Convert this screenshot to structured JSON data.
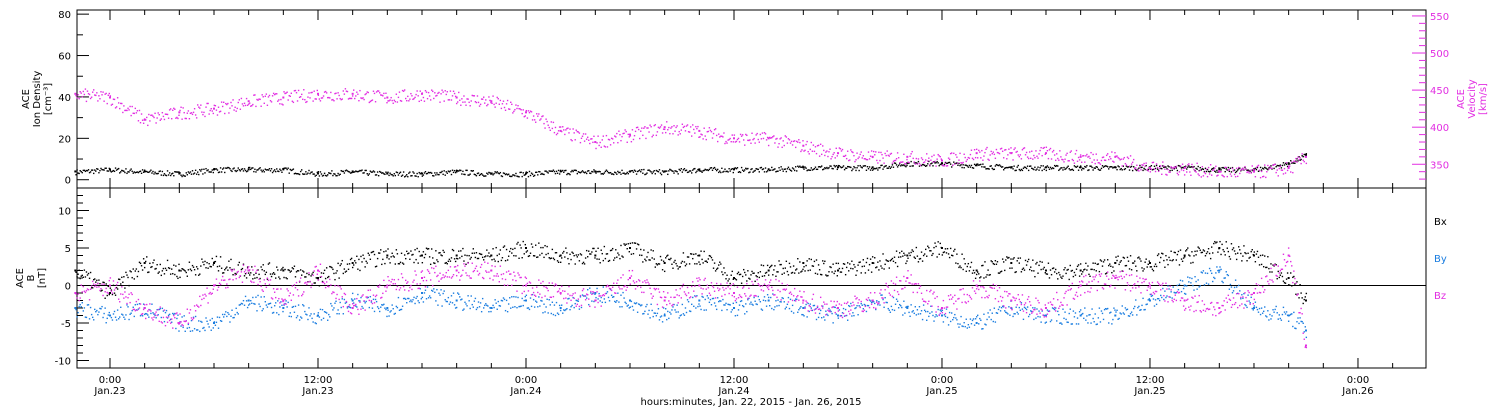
{
  "figure": {
    "x_title": "hours:minutes, Jan. 22, 2015 - Jan. 26, 2015",
    "x_ticks": [
      {
        "time": "0:00",
        "day": "Jan.23",
        "hour": 0
      },
      {
        "time": "12:00",
        "day": "Jan.23",
        "hour": 12
      },
      {
        "time": "0:00",
        "day": "Jan.24",
        "hour": 24
      },
      {
        "time": "12:00",
        "day": "Jan.24",
        "hour": 36
      },
      {
        "time": "0:00",
        "day": "Jan.25",
        "hour": 48
      },
      {
        "time": "12:00",
        "day": "Jan.25",
        "hour": 60
      },
      {
        "time": "0:00",
        "day": "Jan.26",
        "hour": 72
      }
    ]
  },
  "colors": {
    "black": "#000000",
    "magenta": "#e22ee2",
    "blue": "#1a7de0"
  },
  "chart_data": [
    {
      "type": "scatter",
      "panel": "plasma",
      "y_axis": {
        "label_lines": [
          "ACE",
          "Ion Density",
          "[cm⁻³]"
        ],
        "ylim": [
          -4,
          82
        ],
        "ticks": [
          0,
          20,
          40,
          60,
          80
        ]
      },
      "y2_axis": {
        "label_lines": [
          "ACE",
          "Velocity",
          "[km/s]"
        ],
        "ylim": [
          318,
          558
        ],
        "ticks": [
          350,
          400,
          450,
          500,
          550
        ]
      },
      "grid": false,
      "series": [
        {
          "key": "density",
          "axis": "left",
          "color": "#000000",
          "x": [
            -2,
            0,
            2,
            4,
            6,
            8,
            10,
            12,
            14,
            16,
            18,
            20,
            22,
            24,
            26,
            28,
            30,
            32,
            34,
            36,
            38,
            40,
            42,
            44,
            46,
            48,
            50,
            52,
            54,
            56,
            58,
            60,
            62,
            64,
            66,
            68,
            69
          ],
          "y": [
            4,
            5,
            4,
            3,
            5,
            5,
            5,
            3,
            4,
            3,
            3,
            4,
            3,
            3,
            4,
            4,
            4,
            4,
            5,
            5,
            5,
            6,
            6,
            6,
            8,
            8,
            7,
            6,
            6,
            6,
            6,
            6,
            6,
            5,
            5,
            8,
            12
          ]
        },
        {
          "key": "velocity",
          "axis": "right",
          "color": "#e22ee2",
          "x": [
            -2,
            0,
            2,
            4,
            6,
            8,
            10,
            12,
            14,
            16,
            18,
            20,
            22,
            24,
            26,
            28,
            30,
            32,
            34,
            36,
            38,
            40,
            42,
            44,
            46,
            48,
            50,
            52,
            54,
            56,
            58,
            60,
            62,
            64,
            66,
            68,
            69
          ],
          "y": [
            445,
            440,
            410,
            420,
            425,
            435,
            440,
            445,
            445,
            440,
            445,
            440,
            435,
            420,
            395,
            380,
            390,
            400,
            395,
            385,
            385,
            375,
            365,
            360,
            360,
            355,
            365,
            365,
            365,
            360,
            360,
            345,
            345,
            340,
            340,
            345,
            360
          ]
        }
      ]
    },
    {
      "type": "scatter",
      "panel": "magnetic field",
      "y_axis": {
        "label_lines": [
          "ACE",
          "B",
          "[nT]"
        ],
        "ylim": [
          -11,
          13
        ],
        "ticks": [
          -10,
          -5,
          0,
          5,
          10
        ]
      },
      "grid": false,
      "zero_line": true,
      "series": [
        {
          "key": "bx",
          "name": "Bx",
          "color": "#000000",
          "x": [
            -2,
            0,
            2,
            4,
            6,
            8,
            10,
            12,
            14,
            16,
            18,
            20,
            22,
            24,
            26,
            28,
            30,
            32,
            34,
            36,
            38,
            40,
            42,
            44,
            46,
            48,
            50,
            52,
            54,
            56,
            58,
            60,
            62,
            64,
            66,
            68,
            69
          ],
          "y": [
            2,
            -1,
            3,
            2,
            3,
            2,
            2,
            1,
            3,
            4,
            4,
            4,
            4,
            5,
            4,
            4,
            5,
            3,
            4,
            1,
            2,
            3,
            2,
            3,
            4,
            5,
            2,
            3,
            2,
            2,
            3,
            3,
            4,
            5,
            4,
            1,
            -2
          ]
        },
        {
          "key": "by",
          "name": "By",
          "color": "#1a7de0",
          "x": [
            -2,
            0,
            2,
            4,
            6,
            8,
            10,
            12,
            14,
            16,
            18,
            20,
            22,
            24,
            26,
            28,
            30,
            32,
            34,
            36,
            38,
            40,
            42,
            44,
            46,
            48,
            50,
            52,
            54,
            56,
            58,
            60,
            62,
            64,
            66,
            68,
            69
          ],
          "y": [
            -3,
            -4,
            -3,
            -5,
            -5,
            -2,
            -3,
            -4,
            -2,
            -3,
            -1,
            -2,
            -3,
            -2,
            -3,
            -1,
            -2,
            -4,
            -2,
            -3,
            -2,
            -3,
            -4,
            -2,
            -3,
            -4,
            -5,
            -3,
            -4,
            -4,
            -4,
            -2,
            0,
            2,
            -3,
            -4,
            -6
          ]
        },
        {
          "key": "bz",
          "name": "Bz",
          "color": "#e22ee2",
          "x": [
            -2,
            0,
            2,
            4,
            6,
            8,
            10,
            12,
            14,
            16,
            18,
            20,
            22,
            24,
            26,
            28,
            30,
            32,
            34,
            36,
            38,
            40,
            42,
            44,
            46,
            48,
            50,
            52,
            54,
            56,
            58,
            60,
            62,
            64,
            66,
            68,
            69
          ],
          "y": [
            -1,
            0,
            -3,
            -5,
            0,
            2,
            -2,
            2,
            -3,
            0,
            1,
            2,
            2,
            0,
            -1,
            -2,
            1,
            -2,
            0,
            -1,
            0,
            -2,
            -3,
            -2,
            1,
            -3,
            0,
            -2,
            -3,
            0,
            1,
            0,
            -2,
            -3,
            -1,
            4,
            -8
          ]
        }
      ]
    }
  ]
}
